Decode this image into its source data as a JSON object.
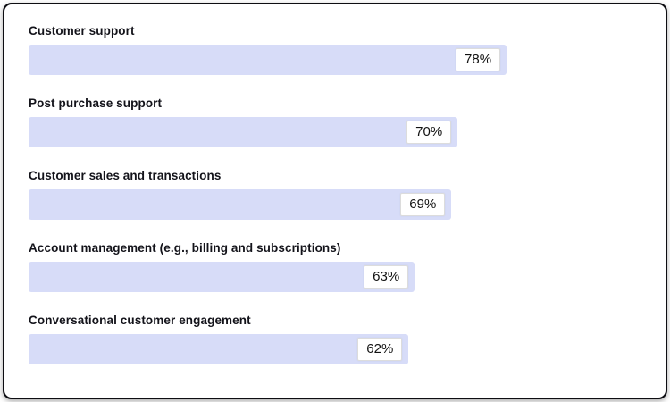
{
  "chart_data": {
    "type": "bar",
    "orientation": "horizontal",
    "title": "",
    "xlabel": "",
    "ylabel": "",
    "xlim": [
      0,
      100
    ],
    "grid": false,
    "legend": "none",
    "categories": [
      "Customer support",
      "Post purchase support",
      "Customer sales and transactions",
      "Account management (e.g., billing and subscriptions)",
      "Conversational customer engagement"
    ],
    "values": [
      78,
      70,
      69,
      63,
      62
    ],
    "value_labels": [
      "78%",
      "70%",
      "69%",
      "63%",
      "62%"
    ],
    "bar_color": "#d7dcf8",
    "badge_background": "#ffffff",
    "badge_border_color": "#dcdcdc",
    "label_color": "#13131a",
    "value_text_color": "#111111"
  }
}
